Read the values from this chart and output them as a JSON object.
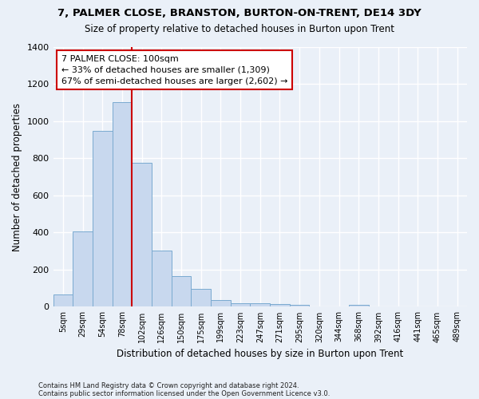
{
  "title1": "7, PALMER CLOSE, BRANSTON, BURTON-ON-TRENT, DE14 3DY",
  "title2": "Size of property relative to detached houses in Burton upon Trent",
  "xlabel": "Distribution of detached houses by size in Burton upon Trent",
  "ylabel": "Number of detached properties",
  "categories": [
    "5sqm",
    "29sqm",
    "54sqm",
    "78sqm",
    "102sqm",
    "126sqm",
    "150sqm",
    "175sqm",
    "199sqm",
    "223sqm",
    "247sqm",
    "271sqm",
    "295sqm",
    "320sqm",
    "344sqm",
    "368sqm",
    "392sqm",
    "416sqm",
    "441sqm",
    "465sqm",
    "489sqm"
  ],
  "values": [
    65,
    405,
    950,
    1105,
    775,
    305,
    165,
    97,
    37,
    20,
    18,
    14,
    12,
    0,
    0,
    12,
    0,
    0,
    0,
    0,
    0
  ],
  "bar_color": "#c8d8ee",
  "bar_edge_color": "#7aaad0",
  "vline_color": "#cc0000",
  "vline_x_index": 4,
  "annotation_text": "7 PALMER CLOSE: 100sqm\n← 33% of detached houses are smaller (1,309)\n67% of semi-detached houses are larger (2,602) →",
  "annotation_box_color": "#ffffff",
  "annotation_box_edge": "#cc0000",
  "ylim": [
    0,
    1400
  ],
  "yticks": [
    0,
    200,
    400,
    600,
    800,
    1000,
    1200,
    1400
  ],
  "footnote1": "Contains HM Land Registry data © Crown copyright and database right 2024.",
  "footnote2": "Contains public sector information licensed under the Open Government Licence v3.0.",
  "bg_color": "#eaf0f8",
  "grid_color": "#ffffff"
}
